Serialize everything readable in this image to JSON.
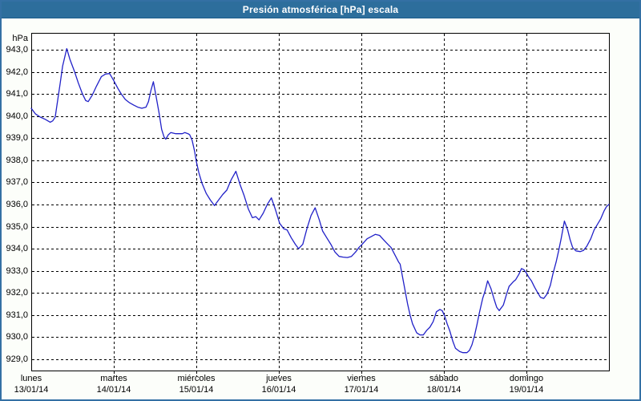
{
  "window": {
    "title": "Presión atmosférica [hPa] escala"
  },
  "colors": {
    "titlebar_bg": "#2d6e9c",
    "frame_border": "#3470a4",
    "plot_bg": "#ffffff",
    "grid": "#000000",
    "series_line": "#2121c8",
    "text": "#000000"
  },
  "chart_data": {
    "type": "line",
    "title": "Presión atmosférica [hPa] escala",
    "unit_label": "hPa",
    "legend_position": "none",
    "grid": "dashed",
    "y_axis": {
      "min": 928.49,
      "max": 943.76,
      "tick_step": 1.0,
      "tick_labels": [
        "943,0",
        "942,0",
        "941,0",
        "940,0",
        "939,0",
        "938,0",
        "937,0",
        "936,0",
        "935,0",
        "934,0",
        "933,0",
        "932,0",
        "931,0",
        "930,0",
        "929,0"
      ],
      "tick_values": [
        943,
        942,
        941,
        940,
        939,
        938,
        937,
        936,
        935,
        934,
        933,
        932,
        931,
        930,
        929
      ]
    },
    "x_axis": {
      "range_days": [
        0,
        7
      ],
      "days": [
        {
          "name": "lunes",
          "date": "13/01/14"
        },
        {
          "name": "martes",
          "date": "14/01/14"
        },
        {
          "name": "miércoles",
          "date": "15/01/14"
        },
        {
          "name": "jueves",
          "date": "16/01/14"
        },
        {
          "name": "viernes",
          "date": "17/01/14"
        },
        {
          "name": "sábado",
          "date": "18/01/14"
        },
        {
          "name": "domingo",
          "date": "19/01/14"
        }
      ]
    },
    "series": [
      {
        "name": "Presión atmosférica",
        "color": "#2121c8",
        "points": [
          [
            0.0,
            940.35
          ],
          [
            0.05,
            940.1
          ],
          [
            0.11,
            939.95
          ],
          [
            0.17,
            939.85
          ],
          [
            0.23,
            939.72
          ],
          [
            0.26,
            939.78
          ],
          [
            0.29,
            939.95
          ],
          [
            0.31,
            940.45
          ],
          [
            0.35,
            941.45
          ],
          [
            0.38,
            942.25
          ],
          [
            0.43,
            943.05
          ],
          [
            0.47,
            942.55
          ],
          [
            0.52,
            942.05
          ],
          [
            0.57,
            941.5
          ],
          [
            0.62,
            941.0
          ],
          [
            0.66,
            940.7
          ],
          [
            0.69,
            940.65
          ],
          [
            0.74,
            940.95
          ],
          [
            0.79,
            941.35
          ],
          [
            0.85,
            941.78
          ],
          [
            0.9,
            941.9
          ],
          [
            0.95,
            941.92
          ],
          [
            1.0,
            941.6
          ],
          [
            1.05,
            941.25
          ],
          [
            1.09,
            941.0
          ],
          [
            1.14,
            940.75
          ],
          [
            1.19,
            940.6
          ],
          [
            1.24,
            940.5
          ],
          [
            1.29,
            940.4
          ],
          [
            1.34,
            940.35
          ],
          [
            1.39,
            940.4
          ],
          [
            1.42,
            940.65
          ],
          [
            1.45,
            941.15
          ],
          [
            1.48,
            941.55
          ],
          [
            1.51,
            940.95
          ],
          [
            1.55,
            940.1
          ],
          [
            1.58,
            939.4
          ],
          [
            1.61,
            939.05
          ],
          [
            1.63,
            938.95
          ],
          [
            1.66,
            939.15
          ],
          [
            1.69,
            939.25
          ],
          [
            1.75,
            939.2
          ],
          [
            1.83,
            939.2
          ],
          [
            1.86,
            939.25
          ],
          [
            1.9,
            939.2
          ],
          [
            1.92,
            939.15
          ],
          [
            1.95,
            938.9
          ],
          [
            1.98,
            938.4
          ],
          [
            2.0,
            937.95
          ],
          [
            2.03,
            937.45
          ],
          [
            2.07,
            936.95
          ],
          [
            2.12,
            936.5
          ],
          [
            2.17,
            936.2
          ],
          [
            2.22,
            935.95
          ],
          [
            2.27,
            936.2
          ],
          [
            2.32,
            936.45
          ],
          [
            2.37,
            936.65
          ],
          [
            2.42,
            937.1
          ],
          [
            2.48,
            937.5
          ],
          [
            2.53,
            936.9
          ],
          [
            2.58,
            936.4
          ],
          [
            2.63,
            935.8
          ],
          [
            2.68,
            935.4
          ],
          [
            2.72,
            935.45
          ],
          [
            2.76,
            935.3
          ],
          [
            2.81,
            935.6
          ],
          [
            2.86,
            936.0
          ],
          [
            2.91,
            936.3
          ],
          [
            2.96,
            935.75
          ],
          [
            3.01,
            935.15
          ],
          [
            3.06,
            934.9
          ],
          [
            3.1,
            934.85
          ],
          [
            3.15,
            934.5
          ],
          [
            3.2,
            934.2
          ],
          [
            3.24,
            934.0
          ],
          [
            3.29,
            934.2
          ],
          [
            3.34,
            934.9
          ],
          [
            3.39,
            935.5
          ],
          [
            3.44,
            935.85
          ],
          [
            3.49,
            935.3
          ],
          [
            3.53,
            934.8
          ],
          [
            3.58,
            934.5
          ],
          [
            3.63,
            934.2
          ],
          [
            3.68,
            933.85
          ],
          [
            3.73,
            933.65
          ],
          [
            3.78,
            933.62
          ],
          [
            3.83,
            933.6
          ],
          [
            3.88,
            933.65
          ],
          [
            3.93,
            933.85
          ],
          [
            3.97,
            934.05
          ],
          [
            4.01,
            934.2
          ],
          [
            4.07,
            934.45
          ],
          [
            4.12,
            934.55
          ],
          [
            4.17,
            934.65
          ],
          [
            4.22,
            934.6
          ],
          [
            4.27,
            934.4
          ],
          [
            4.32,
            934.2
          ],
          [
            4.36,
            934.05
          ],
          [
            4.41,
            933.7
          ],
          [
            4.45,
            933.4
          ],
          [
            4.47,
            933.3
          ],
          [
            4.5,
            932.7
          ],
          [
            4.53,
            932.1
          ],
          [
            4.56,
            931.5
          ],
          [
            4.59,
            931.0
          ],
          [
            4.62,
            930.6
          ],
          [
            4.67,
            930.2
          ],
          [
            4.71,
            930.1
          ],
          [
            4.75,
            930.1
          ],
          [
            4.79,
            930.3
          ],
          [
            4.83,
            930.45
          ],
          [
            4.87,
            930.7
          ],
          [
            4.91,
            931.15
          ],
          [
            4.95,
            931.25
          ],
          [
            4.98,
            931.2
          ],
          [
            5.01,
            930.95
          ],
          [
            5.04,
            930.6
          ],
          [
            5.07,
            930.3
          ],
          [
            5.11,
            929.8
          ],
          [
            5.14,
            929.5
          ],
          [
            5.19,
            929.35
          ],
          [
            5.23,
            929.3
          ],
          [
            5.28,
            929.3
          ],
          [
            5.31,
            929.4
          ],
          [
            5.34,
            929.65
          ],
          [
            5.37,
            930.05
          ],
          [
            5.4,
            930.55
          ],
          [
            5.43,
            931.1
          ],
          [
            5.47,
            931.75
          ],
          [
            5.5,
            932.1
          ],
          [
            5.53,
            932.55
          ],
          [
            5.57,
            932.2
          ],
          [
            5.61,
            931.7
          ],
          [
            5.64,
            931.35
          ],
          [
            5.67,
            931.2
          ],
          [
            5.72,
            931.45
          ],
          [
            5.76,
            931.95
          ],
          [
            5.79,
            932.3
          ],
          [
            5.84,
            932.5
          ],
          [
            5.87,
            932.6
          ],
          [
            5.91,
            932.85
          ],
          [
            5.94,
            933.1
          ],
          [
            5.97,
            933.05
          ],
          [
            6.0,
            932.9
          ],
          [
            6.03,
            932.7
          ],
          [
            6.06,
            932.55
          ],
          [
            6.1,
            932.25
          ],
          [
            6.13,
            932.05
          ],
          [
            6.17,
            931.8
          ],
          [
            6.21,
            931.75
          ],
          [
            6.25,
            931.95
          ],
          [
            6.29,
            932.35
          ],
          [
            6.32,
            932.85
          ],
          [
            6.36,
            933.4
          ],
          [
            6.39,
            933.9
          ],
          [
            6.42,
            934.45
          ],
          [
            6.46,
            935.25
          ],
          [
            6.5,
            934.85
          ],
          [
            6.53,
            934.4
          ],
          [
            6.56,
            934.05
          ],
          [
            6.6,
            933.9
          ],
          [
            6.65,
            933.87
          ],
          [
            6.69,
            933.92
          ],
          [
            6.73,
            934.1
          ],
          [
            6.78,
            934.45
          ],
          [
            6.82,
            934.85
          ],
          [
            6.86,
            935.1
          ],
          [
            6.9,
            935.35
          ],
          [
            6.94,
            935.7
          ],
          [
            6.97,
            935.9
          ],
          [
            7.0,
            936.0
          ]
        ]
      }
    ]
  }
}
